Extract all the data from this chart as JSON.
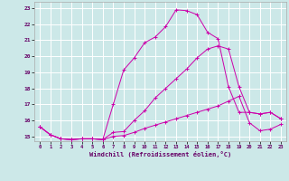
{
  "xlabel": "Windchill (Refroidissement éolien,°C)",
  "background_color": "#cce8e8",
  "grid_color": "#b0d0d0",
  "line_color": "#cc00aa",
  "xmin": -0.5,
  "xmax": 23.5,
  "ymin": 14.7,
  "ymax": 23.4,
  "yticks": [
    15,
    16,
    17,
    18,
    19,
    20,
    21,
    22,
    23
  ],
  "xticks": [
    0,
    1,
    2,
    3,
    4,
    5,
    6,
    7,
    8,
    9,
    10,
    11,
    12,
    13,
    14,
    15,
    16,
    17,
    18,
    19,
    20,
    21,
    22,
    23
  ],
  "series": [
    {
      "x": [
        0,
        1,
        2,
        3,
        4,
        5,
        6,
        7,
        8,
        9,
        10,
        11,
        12,
        13,
        14,
        15,
        16,
        17,
        18,
        19,
        20,
        21,
        22,
        23
      ],
      "y": [
        15.6,
        15.1,
        14.85,
        14.8,
        14.85,
        14.85,
        14.8,
        17.0,
        19.15,
        19.9,
        20.85,
        21.2,
        21.85,
        22.9,
        22.85,
        22.6,
        21.5,
        21.1,
        18.1,
        16.5,
        16.5,
        16.4,
        16.5,
        16.1
      ]
    },
    {
      "x": [
        0,
        1,
        2,
        3,
        4,
        5,
        6,
        7,
        8,
        9,
        10,
        11,
        12,
        13,
        14,
        15,
        16,
        17,
        18,
        19,
        20,
        21,
        22,
        23
      ],
      "y": [
        15.6,
        15.1,
        14.85,
        14.8,
        14.85,
        14.85,
        14.8,
        15.25,
        15.3,
        16.0,
        16.6,
        17.4,
        18.0,
        18.6,
        19.2,
        19.9,
        20.45,
        20.65,
        20.45,
        18.1,
        16.5,
        16.4,
        16.5,
        16.1
      ]
    },
    {
      "x": [
        0,
        1,
        2,
        3,
        4,
        5,
        6,
        7,
        8,
        9,
        10,
        11,
        12,
        13,
        14,
        15,
        16,
        17,
        18,
        19,
        20,
        21,
        22,
        23
      ],
      "y": [
        15.6,
        15.1,
        14.85,
        14.8,
        14.85,
        14.85,
        14.8,
        15.0,
        15.05,
        15.25,
        15.5,
        15.7,
        15.9,
        16.1,
        16.3,
        16.5,
        16.7,
        16.9,
        17.2,
        17.5,
        15.85,
        15.35,
        15.45,
        15.75
      ]
    }
  ]
}
